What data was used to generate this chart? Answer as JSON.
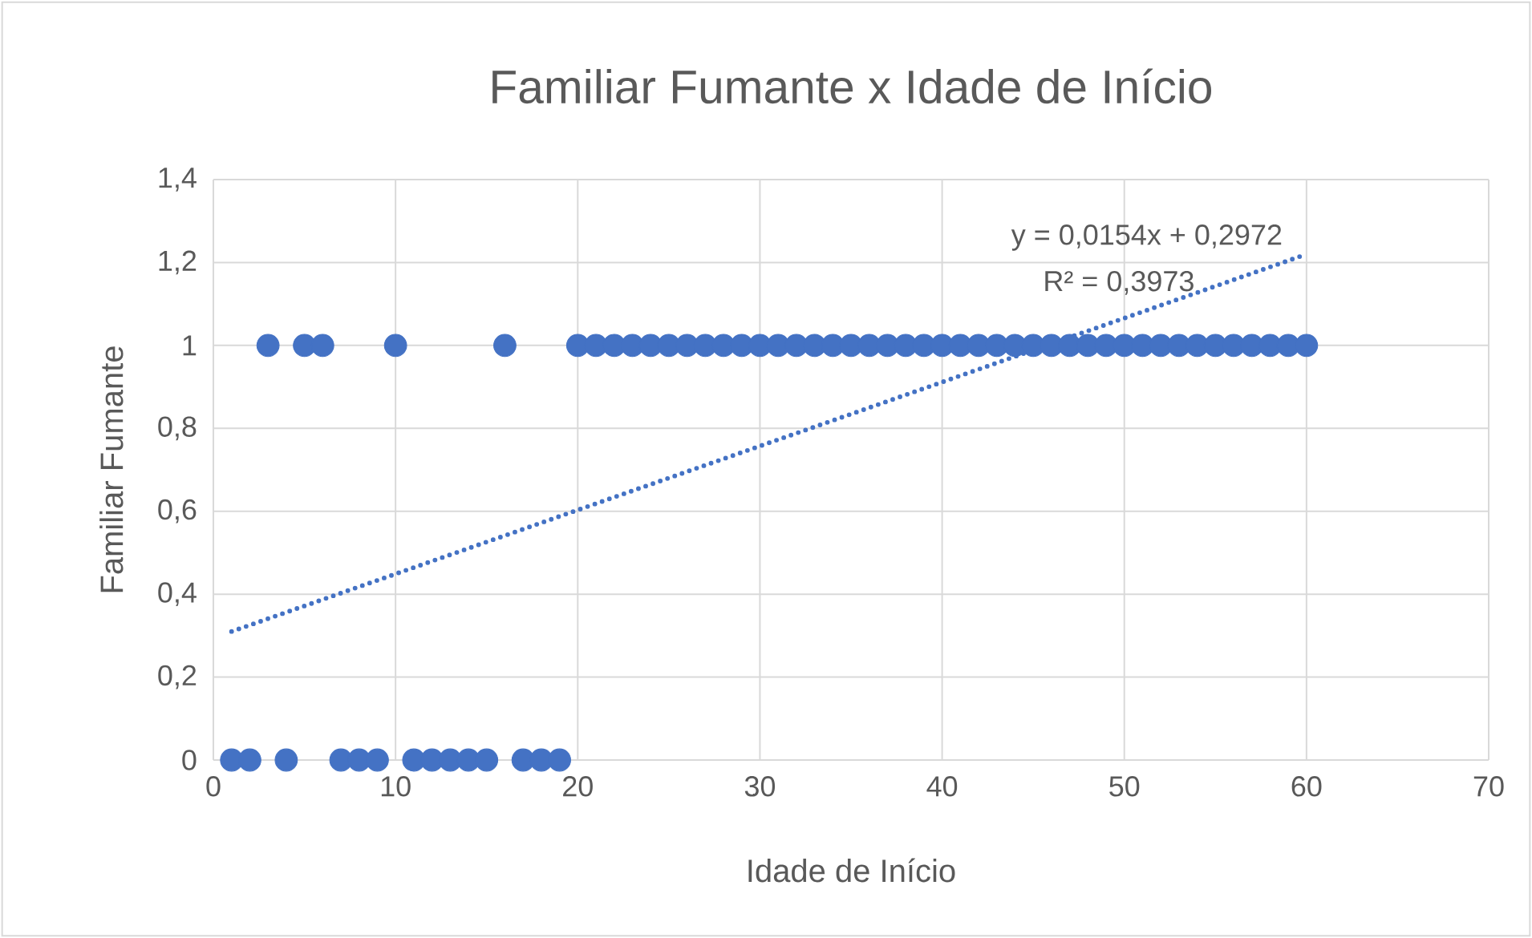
{
  "chart_data": {
    "type": "scatter",
    "title": "Familiar Fumante x Idade de Início",
    "xlabel": "Idade de Início",
    "ylabel": "Familiar Fumante",
    "xlim": [
      0,
      70
    ],
    "xticks": [
      0,
      10,
      20,
      30,
      40,
      50,
      60,
      70
    ],
    "ylim": [
      0,
      1.4
    ],
    "yticks": [
      0,
      {
        "value": 0.2,
        "label": "0,2"
      },
      {
        "value": 0.4,
        "label": "0,4"
      },
      {
        "value": 0.6,
        "label": "0,6"
      },
      {
        "value": 0.8,
        "label": "0,8"
      },
      1,
      {
        "value": 1.2,
        "label": "1,2"
      },
      {
        "value": 1.4,
        "label": "1,4"
      }
    ],
    "grid": true,
    "annotations": [
      "y = 0,0154x + 0,2972",
      "R² = 0,3973"
    ],
    "series": [
      {
        "type": "scatter",
        "color": "#4472c4",
        "marker": "circle",
        "x": [
          3,
          5,
          6,
          10,
          16,
          20,
          21,
          22,
          23,
          24,
          25,
          26,
          27,
          28,
          29,
          30,
          31,
          32,
          33,
          34,
          35,
          36,
          37,
          38,
          39,
          40,
          41,
          42,
          43,
          44,
          45,
          46,
          47,
          48,
          49,
          50,
          51,
          52,
          53,
          54,
          55,
          56,
          57,
          58,
          59,
          60,
          1,
          2,
          4,
          7,
          8,
          9,
          11,
          12,
          13,
          14,
          15,
          17,
          18,
          19
        ],
        "values": [
          1,
          1,
          1,
          1,
          1,
          1,
          1,
          1,
          1,
          1,
          1,
          1,
          1,
          1,
          1,
          1,
          1,
          1,
          1,
          1,
          1,
          1,
          1,
          1,
          1,
          1,
          1,
          1,
          1,
          1,
          1,
          1,
          1,
          1,
          1,
          1,
          1,
          1,
          1,
          1,
          1,
          1,
          1,
          1,
          1,
          1,
          0,
          0,
          0,
          0,
          0,
          0,
          0,
          0,
          0,
          0,
          0,
          0,
          0,
          0
        ]
      },
      {
        "type": "line",
        "color": "#4472c4",
        "marker": "none",
        "line_style": "dotted",
        "x": [
          1,
          60
        ],
        "values": [
          0.31,
          1.22
        ]
      }
    ]
  }
}
